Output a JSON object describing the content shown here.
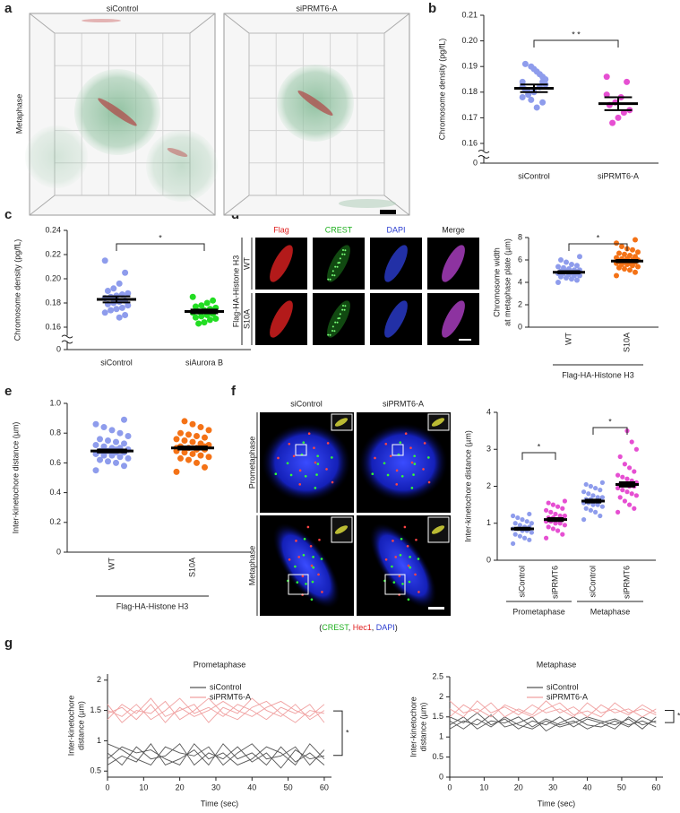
{
  "figure": {
    "panel_labels": [
      "a",
      "b",
      "c",
      "d",
      "e",
      "f",
      "g"
    ],
    "a": {
      "columns": [
        "siControl",
        "siPRMT6-A"
      ],
      "row": "Metaphase"
    },
    "d": {
      "columns": [
        "Flag",
        "CREST",
        "DAPI",
        "Merge"
      ],
      "rows": [
        "WT",
        "S10A"
      ],
      "group": "Flag-HA-Histone H3"
    },
    "f": {
      "columns": [
        "siControl",
        "siPRMT6-A"
      ],
      "rows": [
        "Prometaphase",
        "Metaphase"
      ],
      "legend": [
        "(",
        "CREST",
        ", ",
        "Hec1",
        ", ",
        "DAPI",
        ")"
      ]
    }
  },
  "chart_data": [
    {
      "type": "dotplot",
      "ylabel": "Chromosome density (pg/fL)",
      "ylim": [
        0.16,
        0.21
      ],
      "yticks": [
        0.16,
        0.17,
        0.18,
        0.19,
        {
          "value": 0.2,
          "label": "0.20"
        },
        0.21
      ],
      "axis_break_tick": 0,
      "significance": "* *",
      "groups": [
        {
          "name": "siControl",
          "color": "#8e9cec",
          "mean": 0.1815,
          "sem": 0.0015,
          "values": [
            0.184,
            0.186,
            0.188,
            0.19,
            0.191,
            0.183,
            0.182,
            0.18,
            0.179,
            0.178,
            0.176,
            0.174,
            0.177,
            0.181,
            0.185,
            0.187,
            0.189,
            0.18,
            0.182,
            0.184
          ]
        },
        {
          "name": "siPRMT6-A",
          "color": "#e64fd2",
          "mean": 0.1755,
          "sem": 0.0025,
          "values": [
            0.186,
            0.184,
            0.178,
            0.176,
            0.175,
            0.173,
            0.172,
            0.17,
            0.168,
            0.179
          ]
        }
      ]
    },
    {
      "type": "dotplot",
      "ylabel": "Chromosome density (pg/fL)",
      "ylim": [
        0.16,
        0.24
      ],
      "yticks": [
        0.16,
        0.18,
        {
          "value": 0.2,
          "label": "0.20"
        },
        0.22,
        0.24
      ],
      "axis_break_tick": 0,
      "significance": "*",
      "groups": [
        {
          "name": "siControl",
          "color": "#8e9cec",
          "mean": 0.183,
          "sem": 0.0025,
          "values": [
            0.215,
            0.205,
            0.196,
            0.192,
            0.19,
            0.188,
            0.187,
            0.186,
            0.185,
            0.184,
            0.182,
            0.181,
            0.18,
            0.179,
            0.178,
            0.176,
            0.175,
            0.174,
            0.172,
            0.17,
            0.168,
            0.183
          ]
        },
        {
          "name": "siAurora B",
          "color": "#22dd22",
          "mean": 0.173,
          "sem": 0.0015,
          "values": [
            0.185,
            0.182,
            0.18,
            0.178,
            0.177,
            0.176,
            0.175,
            0.174,
            0.173,
            0.172,
            0.171,
            0.17,
            0.169,
            0.168,
            0.167,
            0.166,
            0.164,
            0.163
          ]
        }
      ]
    },
    {
      "type": "dotplot",
      "ylabel": [
        "Chromosome width",
        "at metaphase plate (µm)"
      ],
      "ylim": [
        0,
        8
      ],
      "yticks": [
        0,
        2,
        4,
        6,
        8
      ],
      "significance": "*",
      "xgroups": [
        "Flag-HA-Histone H3"
      ],
      "groups": [
        {
          "name": "WT",
          "color": "#8e9cec",
          "mean": 4.9,
          "sem": 0.1,
          "values": [
            4.0,
            4.2,
            4.3,
            4.4,
            4.5,
            4.6,
            4.6,
            4.7,
            4.8,
            4.8,
            4.9,
            4.9,
            5.0,
            5.0,
            5.1,
            5.1,
            5.2,
            5.3,
            5.4,
            5.5,
            5.6,
            5.8,
            6.0,
            6.3
          ]
        },
        {
          "name": "S10A",
          "color": "#f47216",
          "mean": 5.9,
          "sem": 0.1,
          "values": [
            4.6,
            4.9,
            5.1,
            5.2,
            5.3,
            5.4,
            5.5,
            5.6,
            5.6,
            5.7,
            5.8,
            5.8,
            5.9,
            5.9,
            6.0,
            6.0,
            6.1,
            6.1,
            6.2,
            6.3,
            6.4,
            6.5,
            6.6,
            6.7,
            6.9,
            7.0,
            7.2,
            7.5,
            7.8,
            5.7
          ]
        }
      ]
    },
    {
      "type": "dotplot",
      "ylabel": "Inter-kinetochore distance (µm)",
      "ylim": [
        0,
        1
      ],
      "yticks": [
        0,
        0.2,
        0.4,
        0.6,
        0.8,
        {
          "value": 1,
          "label": "1.0"
        }
      ],
      "xgroups": [
        "Flag-HA-Histone H3"
      ],
      "groups": [
        {
          "name": "WT",
          "color": "#8e9cec",
          "mean": 0.68,
          "sem": 0.01,
          "values": [
            0.55,
            0.58,
            0.6,
            0.61,
            0.62,
            0.63,
            0.64,
            0.65,
            0.65,
            0.66,
            0.67,
            0.67,
            0.68,
            0.68,
            0.69,
            0.7,
            0.7,
            0.71,
            0.72,
            0.73,
            0.74,
            0.75,
            0.76,
            0.78,
            0.8,
            0.82,
            0.84,
            0.86,
            0.89,
            0.69
          ]
        },
        {
          "name": "S10A",
          "color": "#f47216",
          "mean": 0.7,
          "sem": 0.01,
          "values": [
            0.54,
            0.57,
            0.6,
            0.62,
            0.63,
            0.64,
            0.65,
            0.66,
            0.67,
            0.68,
            0.69,
            0.7,
            0.7,
            0.71,
            0.72,
            0.73,
            0.74,
            0.75,
            0.76,
            0.77,
            0.78,
            0.79,
            0.8,
            0.82,
            0.84,
            0.86,
            0.88,
            0.7,
            0.71,
            0.69
          ]
        }
      ]
    },
    {
      "type": "dotplot",
      "ylabel": "Inter-kinetochore distance (µm)",
      "ylim": [
        0,
        4
      ],
      "yticks": [
        0,
        1,
        2,
        3,
        4
      ],
      "significance": [
        "*",
        "*"
      ],
      "xgroups": [
        "Prometaphase",
        "Metaphase"
      ],
      "groups": [
        {
          "name": "siControl",
          "color": "#8e9cec",
          "mean": 0.85,
          "sem": 0.03,
          "values": [
            0.45,
            0.55,
            0.6,
            0.65,
            0.7,
            0.75,
            0.8,
            0.8,
            0.85,
            0.85,
            0.9,
            0.9,
            0.95,
            1.0,
            1.0,
            1.05,
            1.1,
            1.15,
            1.2,
            1.25
          ]
        },
        {
          "name": "siPRMT6",
          "color": "#e64fd2",
          "mean": 1.1,
          "sem": 0.04,
          "values": [
            0.6,
            0.7,
            0.8,
            0.85,
            0.9,
            0.95,
            1.0,
            1.0,
            1.05,
            1.05,
            1.1,
            1.1,
            1.15,
            1.15,
            1.2,
            1.2,
            1.25,
            1.3,
            1.35,
            1.4,
            1.45,
            1.5,
            1.55,
            1.6
          ]
        },
        {
          "name": "siControl",
          "color": "#8e9cec",
          "mean": 1.6,
          "sem": 0.04,
          "values": [
            1.1,
            1.2,
            1.3,
            1.35,
            1.4,
            1.45,
            1.5,
            1.5,
            1.55,
            1.55,
            1.6,
            1.6,
            1.65,
            1.65,
            1.7,
            1.7,
            1.75,
            1.8,
            1.85,
            1.9,
            1.95,
            2.0,
            2.05,
            2.1
          ]
        },
        {
          "name": "siPRMT6",
          "color": "#e64fd2",
          "mean": 2.05,
          "sem": 0.06,
          "values": [
            1.3,
            1.4,
            1.5,
            1.6,
            1.7,
            1.75,
            1.8,
            1.85,
            1.9,
            1.95,
            2.0,
            2.0,
            2.05,
            2.05,
            2.1,
            2.15,
            2.2,
            2.25,
            2.3,
            2.4,
            2.5,
            2.6,
            2.8,
            3.0,
            3.2,
            3.5
          ]
        }
      ]
    },
    {
      "type": "line",
      "title": "Prometaphase",
      "ylabel": [
        "Inter-kinetochore",
        "distance (µm)"
      ],
      "xlabel": "Time (sec)",
      "xlim": [
        0,
        62
      ],
      "xticks": [
        0,
        10,
        20,
        30,
        40,
        50,
        60
      ],
      "ylim": [
        0.4,
        2.1
      ],
      "yticks": [
        0.5,
        1,
        1.5,
        2
      ],
      "significance": "*",
      "x": [
        0,
        4,
        8,
        12,
        16,
        20,
        24,
        28,
        32,
        36,
        40,
        44,
        48,
        52,
        56,
        60
      ],
      "series": [
        {
          "name": "siControl",
          "color": "#555555",
          "lines": [
            [
              0.8,
              0.6,
              0.9,
              0.7,
              0.75,
              0.95,
              0.6,
              0.8,
              0.7,
              0.9,
              0.65,
              0.8,
              0.55,
              0.85,
              0.7,
              0.75
            ],
            [
              0.6,
              0.75,
              0.65,
              0.95,
              0.6,
              0.7,
              0.85,
              0.6,
              0.95,
              0.7,
              0.8,
              0.6,
              0.9,
              0.65,
              0.8,
              0.6
            ],
            [
              0.95,
              0.85,
              0.7,
              0.6,
              0.9,
              0.8,
              0.75,
              0.9,
              0.6,
              0.8,
              0.95,
              0.7,
              0.75,
              0.9,
              0.6,
              0.85
            ],
            [
              0.7,
              0.9,
              0.8,
              0.85,
              0.7,
              0.6,
              0.95,
              0.7,
              0.8,
              0.6,
              0.7,
              0.9,
              0.8,
              0.6,
              0.95,
              0.7
            ]
          ]
        },
        {
          "name": "siPRMT6-A",
          "color": "#f0a0a0",
          "lines": [
            [
              1.5,
              1.4,
              1.6,
              1.35,
              1.5,
              1.7,
              1.45,
              1.55,
              1.4,
              1.6,
              1.5,
              1.35,
              1.55,
              1.45,
              1.6,
              1.3
            ],
            [
              1.35,
              1.6,
              1.45,
              1.7,
              1.4,
              1.5,
              1.6,
              1.3,
              1.55,
              1.45,
              1.7,
              1.5,
              1.4,
              1.6,
              1.35,
              1.5
            ],
            [
              1.6,
              1.3,
              1.5,
              1.45,
              1.65,
              1.35,
              1.5,
              1.7,
              1.45,
              1.35,
              1.55,
              1.65,
              1.45,
              1.3,
              1.5,
              1.45
            ],
            [
              1.45,
              1.55,
              1.35,
              1.6,
              1.3,
              1.55,
              1.4,
              1.5,
              1.65,
              1.5,
              1.4,
              1.55,
              1.65,
              1.5,
              1.4,
              1.6
            ]
          ]
        }
      ]
    },
    {
      "type": "line",
      "title": "Metaphase",
      "ylabel": [
        "Inter-kinetochore",
        "distance (µm)"
      ],
      "xlabel": "Time (sec)",
      "xlim": [
        0,
        62
      ],
      "xticks": [
        0,
        10,
        20,
        30,
        40,
        50,
        60
      ],
      "ylim": [
        0,
        2.5
      ],
      "yticks": [
        0,
        0.5,
        1,
        1.5,
        2,
        2.5
      ],
      "significance": "*",
      "x": [
        0,
        4,
        8,
        12,
        16,
        20,
        24,
        28,
        32,
        36,
        40,
        44,
        48,
        52,
        56,
        60
      ],
      "series": [
        {
          "name": "siControl",
          "color": "#555555",
          "lines": [
            [
              1.3,
              1.5,
              1.2,
              1.4,
              1.35,
              1.5,
              1.25,
              1.45,
              1.3,
              1.4,
              1.2,
              1.35,
              1.45,
              1.3,
              1.4,
              1.25
            ],
            [
              1.5,
              1.35,
              1.6,
              1.3,
              1.45,
              1.2,
              1.4,
              1.3,
              1.5,
              1.25,
              1.45,
              1.35,
              1.2,
              1.5,
              1.3,
              1.4
            ],
            [
              1.2,
              1.4,
              1.3,
              1.55,
              1.25,
              1.35,
              1.5,
              1.15,
              1.35,
              1.5,
              1.3,
              1.25,
              1.4,
              1.25,
              1.5,
              1.35
            ],
            [
              1.4,
              1.2,
              1.45,
              1.25,
              1.5,
              1.3,
              1.2,
              1.4,
              1.25,
              1.35,
              1.5,
              1.4,
              1.3,
              1.45,
              1.2,
              1.5
            ]
          ]
        },
        {
          "name": "siPRMT6-A",
          "color": "#f0a0a0",
          "lines": [
            [
              1.7,
              1.5,
              1.9,
              1.6,
              1.75,
              1.55,
              1.8,
              1.6,
              1.7,
              1.5,
              1.85,
              1.6,
              1.7,
              1.55,
              1.8,
              1.6
            ],
            [
              1.5,
              1.8,
              1.6,
              1.85,
              1.5,
              1.7,
              1.55,
              1.9,
              1.6,
              1.75,
              1.5,
              1.8,
              1.6,
              1.7,
              1.5,
              1.7
            ],
            [
              1.9,
              1.6,
              1.7,
              1.5,
              1.8,
              1.65,
              1.5,
              1.7,
              1.85,
              1.55,
              1.65,
              1.5,
              1.85,
              1.6,
              1.7,
              1.55
            ]
          ]
        }
      ]
    }
  ]
}
